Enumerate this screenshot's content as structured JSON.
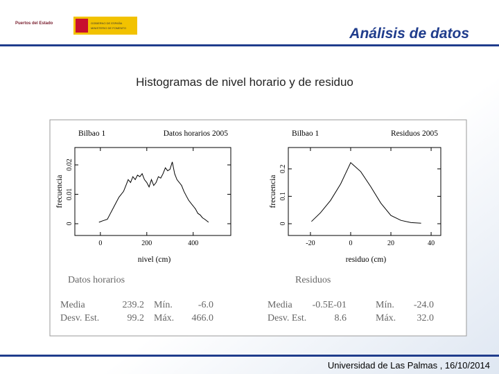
{
  "header": {
    "logo_text": "Puertos del Estado",
    "gov_text": "GOBIERNO DE ESPAÑA",
    "ministry_text": "MINISTERIO DE FOMENTO",
    "title": "Análisis de datos"
  },
  "subtitle": "Histogramas de  nivel horario y de residuo",
  "chart_data": [
    {
      "type": "line",
      "title": "Bilbao 1",
      "subtitle": "Datos horarios 2005",
      "xlabel": "nivel (cm)",
      "ylabel": "frecuencia",
      "color": "#000000",
      "x": [
        -6,
        10,
        30,
        40,
        60,
        80,
        100,
        110,
        120,
        130,
        140,
        150,
        160,
        170,
        180,
        190,
        200,
        210,
        220,
        230,
        240,
        250,
        260,
        270,
        280,
        290,
        300,
        310,
        320,
        330,
        340,
        350,
        360,
        370,
        380,
        390,
        400,
        410,
        420,
        430,
        440,
        450,
        466
      ],
      "values": [
        0.0005,
        0.001,
        0.0015,
        0.003,
        0.006,
        0.009,
        0.011,
        0.013,
        0.015,
        0.014,
        0.016,
        0.015,
        0.0165,
        0.016,
        0.017,
        0.015,
        0.014,
        0.0125,
        0.015,
        0.013,
        0.014,
        0.016,
        0.0155,
        0.017,
        0.019,
        0.018,
        0.0185,
        0.021,
        0.017,
        0.015,
        0.014,
        0.013,
        0.011,
        0.0095,
        0.008,
        0.007,
        0.006,
        0.005,
        0.0035,
        0.003,
        0.002,
        0.0015,
        0.0005
      ],
      "xlim": [
        -110,
        562
      ],
      "ylim": [
        -0.004,
        0.0259
      ],
      "xticks": [
        0,
        200,
        400
      ],
      "yticks": [
        0,
        0.01,
        0.02
      ]
    },
    {
      "type": "line",
      "title": "Bilbao 1",
      "subtitle": "Residuos 2005",
      "xlabel": "residuo (cm)",
      "ylabel": "frecuencia",
      "color": "#000000",
      "x": [
        -19.5,
        -15,
        -10,
        -5,
        0,
        5,
        10,
        15,
        20,
        25,
        30,
        35
      ],
      "values": [
        0.008,
        0.04,
        0.085,
        0.145,
        0.223,
        0.19,
        0.135,
        0.075,
        0.03,
        0.012,
        0.004,
        0.002
      ],
      "xlim": [
        -31,
        44.8
      ],
      "ylim": [
        -0.043,
        0.278
      ],
      "xticks": [
        -20,
        0,
        20,
        40
      ],
      "yticks": [
        0,
        0.1,
        0.2
      ]
    }
  ],
  "stats": [
    {
      "label": "Datos horarios",
      "rows": [
        [
          "Media",
          "239.2",
          "Mín.",
          "-6.0"
        ],
        [
          "Desv. Est.",
          "99.2",
          "Máx.",
          "466.0"
        ]
      ]
    },
    {
      "label": "Residuos",
      "rows": [
        [
          "Media",
          "-0.5E-01",
          "Mín.",
          "-24.0"
        ],
        [
          "Desv. Est.",
          "8.6",
          "Máx.",
          "32.0"
        ]
      ]
    }
  ],
  "footer": "Universidad de Las Palmas , 16/10/2014"
}
